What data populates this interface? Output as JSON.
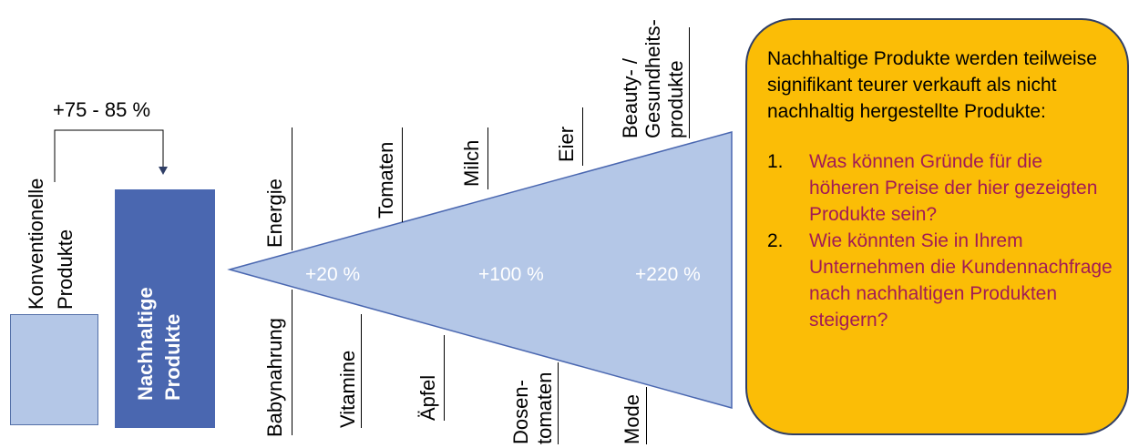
{
  "comparison": {
    "increase_label": "+75 - 85 %",
    "conventional_line1": "Konventionelle",
    "conventional_line2": "Produkte",
    "sustainable_line1": "Nachhaltige",
    "sustainable_line2": "Produkte"
  },
  "wedge": {
    "percent_labels": [
      "+20 %",
      "+100 %",
      "+220 %"
    ],
    "top_products": {
      "energie": "Energie",
      "tomaten": "Tomaten",
      "milch": "Milch",
      "eier": "Eier",
      "beauty_1": "Beauty- /",
      "beauty_2": "Gesundheits-",
      "beauty_3": "produkte"
    },
    "bottom_products": {
      "babynahrung": "Babynahrung",
      "vitamine": "Vitamine",
      "aepfel": "Äpfel",
      "dosen_1": "Dosen-",
      "dosen_2": "tomaten",
      "mode": "Mode"
    }
  },
  "callout": {
    "statement": "Nachhaltige Produkte werden teilweise signifikant teurer verkauft als nicht nachhaltig hergestellte Produkte:",
    "questions": [
      {
        "number": "1.",
        "text": "Was können Gründe für die höheren Preise der hier gezeigten Produkte sein?"
      },
      {
        "number": "2.",
        "text": "Wie könnten Sie in Ihrem Unternehmen die Kundennachfrage nach nachhaltigen Produkten steigern?"
      }
    ]
  },
  "colors": {
    "light_blue": "#b4c7e7",
    "dark_blue": "#4a67b0",
    "callout_fill": "#fbbd06",
    "question_text": "#a21b55"
  }
}
